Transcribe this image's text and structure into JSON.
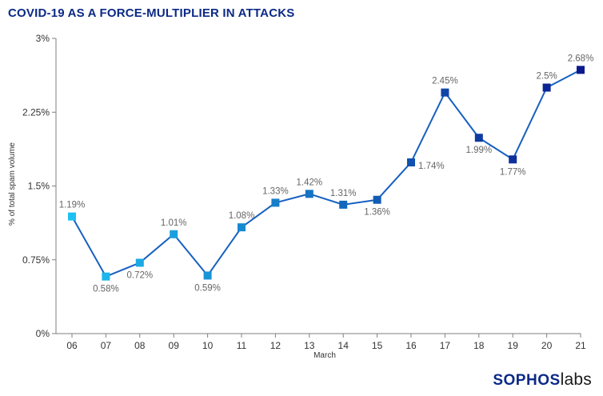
{
  "colors": {
    "title": "#0b2a86",
    "line": "#1660c0",
    "axis": "#7f7f7f",
    "text": "#333333",
    "label": "#666666",
    "marker_start": "#1ec0f2",
    "marker_end": "#0a1a8e",
    "logo_primary": "#0b2a86",
    "logo_secondary": "#1a1a1a"
  },
  "brand": {
    "part1": "SOPHOS",
    "part2": "labs"
  },
  "chart_data": {
    "type": "line",
    "title": "COVID-19 AS A FORCE-MULTIPLIER IN ATTACKS",
    "xlabel": "March",
    "ylabel": "% of total spam volume",
    "categories": [
      "06",
      "07",
      "08",
      "09",
      "10",
      "11",
      "12",
      "13",
      "14",
      "15",
      "16",
      "17",
      "18",
      "19",
      "20",
      "21"
    ],
    "series": [
      {
        "values": [
          1.19,
          0.58,
          0.72,
          1.01,
          0.59,
          1.08,
          1.33,
          1.42,
          1.31,
          1.36,
          1.74,
          2.45,
          1.99,
          1.77,
          2.5,
          2.68
        ],
        "labels": [
          "1.19%",
          "0.58%",
          "0.72%",
          "1.01%",
          "0.59%",
          "1.08%",
          "1.33%",
          "1.42%",
          "1.31%",
          "1.36%",
          "1.74%",
          "2.45%",
          "1.99%",
          "1.77%",
          "2.5%",
          "2.68%"
        ],
        "label_position": [
          "above",
          "below",
          "below",
          "above",
          "below",
          "above",
          "above",
          "above",
          "above",
          "below",
          "right",
          "above",
          "below",
          "below",
          "above",
          "above"
        ]
      }
    ],
    "ylim": [
      0,
      3
    ],
    "yticks": [
      0,
      0.75,
      1.5,
      2.25,
      3
    ],
    "ytick_labels": [
      "0%",
      "0.75%",
      "1.5%",
      "2.25%",
      "3%"
    ],
    "grid": false,
    "legend": "none"
  }
}
